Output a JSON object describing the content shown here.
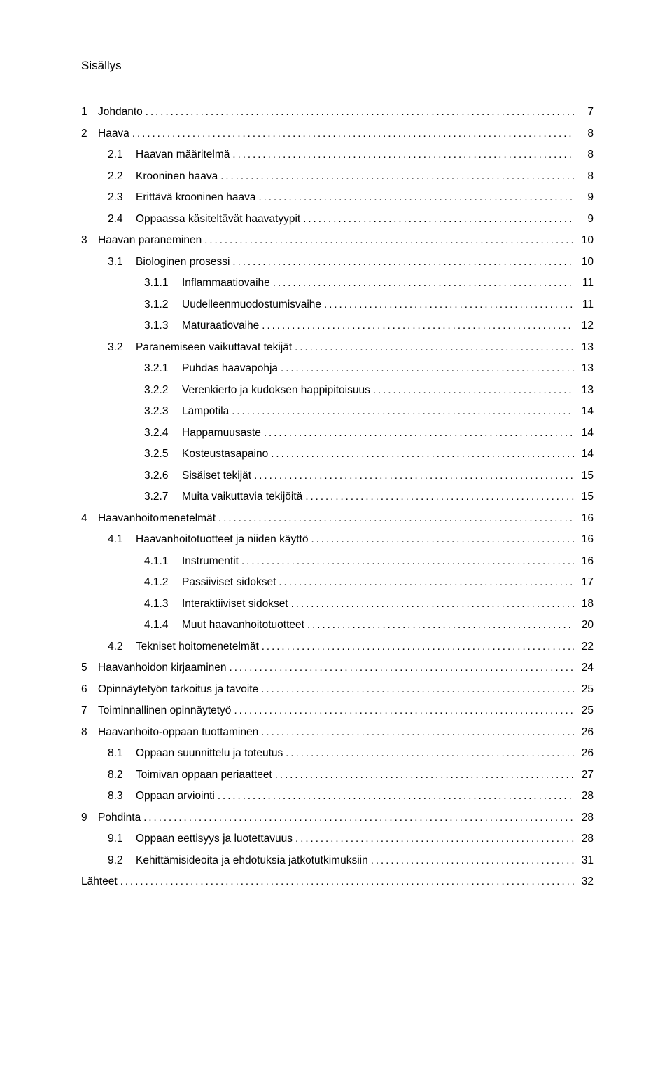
{
  "title": "Sisällys",
  "toc": [
    {
      "level": 0,
      "num": "1",
      "label": "Johdanto",
      "page": "7"
    },
    {
      "level": 0,
      "num": "2",
      "label": "Haava",
      "page": "8"
    },
    {
      "level": 1,
      "num": "2.1",
      "label": "Haavan määritelmä",
      "page": "8"
    },
    {
      "level": 1,
      "num": "2.2",
      "label": "Krooninen haava",
      "page": "8"
    },
    {
      "level": 1,
      "num": "2.3",
      "label": "Erittävä krooninen haava",
      "page": "9"
    },
    {
      "level": 1,
      "num": "2.4",
      "label": "Oppaassa käsiteltävät haavatyypit",
      "page": "9"
    },
    {
      "level": 0,
      "num": "3",
      "label": "Haavan paraneminen",
      "page": "10"
    },
    {
      "level": 1,
      "num": "3.1",
      "label": "Biologinen prosessi",
      "page": "10"
    },
    {
      "level": 2,
      "num": "3.1.1",
      "label": "Inflammaatiovaihe",
      "page": "11"
    },
    {
      "level": 2,
      "num": "3.1.2",
      "label": "Uudelleenmuodostumisvaihe",
      "page": "11"
    },
    {
      "level": 2,
      "num": "3.1.3",
      "label": "Maturaatiovaihe",
      "page": "12"
    },
    {
      "level": 1,
      "num": "3.2",
      "label": "Paranemiseen vaikuttavat tekijät",
      "page": "13"
    },
    {
      "level": 2,
      "num": "3.2.1",
      "label": "Puhdas haavapohja",
      "page": "13"
    },
    {
      "level": 2,
      "num": "3.2.2",
      "label": "Verenkierto ja kudoksen happipitoisuus",
      "page": "13"
    },
    {
      "level": 2,
      "num": "3.2.3",
      "label": "Lämpötila",
      "page": "14"
    },
    {
      "level": 2,
      "num": "3.2.4",
      "label": "Happamuusaste",
      "page": "14"
    },
    {
      "level": 2,
      "num": "3.2.5",
      "label": "Kosteustasapaino",
      "page": "14"
    },
    {
      "level": 2,
      "num": "3.2.6",
      "label": "Sisäiset tekijät",
      "page": "15"
    },
    {
      "level": 2,
      "num": "3.2.7",
      "label": "Muita vaikuttavia tekijöitä",
      "page": "15"
    },
    {
      "level": 0,
      "num": "4",
      "label": "Haavanhoitomenetelmät",
      "page": "16"
    },
    {
      "level": 1,
      "num": "4.1",
      "label": "Haavanhoitotuotteet ja niiden käyttö",
      "page": "16"
    },
    {
      "level": 2,
      "num": "4.1.1",
      "label": "Instrumentit",
      "page": "16"
    },
    {
      "level": 2,
      "num": "4.1.2",
      "label": "Passiiviset sidokset",
      "page": "17"
    },
    {
      "level": 2,
      "num": "4.1.3",
      "label": "Interaktiiviset sidokset",
      "page": "18"
    },
    {
      "level": 2,
      "num": "4.1.4",
      "label": "Muut haavanhoitotuotteet",
      "page": "20"
    },
    {
      "level": 1,
      "num": "4.2",
      "label": "Tekniset hoitomenetelmät",
      "page": "22"
    },
    {
      "level": 0,
      "num": "5",
      "label": "Haavanhoidon kirjaaminen",
      "page": "24"
    },
    {
      "level": 0,
      "num": "6",
      "label": "Opinnäytetyön tarkoitus ja tavoite",
      "page": "25"
    },
    {
      "level": 0,
      "num": "7",
      "label": "Toiminnallinen opinnäytetyö",
      "page": "25"
    },
    {
      "level": 0,
      "num": "8",
      "label": "Haavanhoito-oppaan tuottaminen",
      "page": "26"
    },
    {
      "level": 1,
      "num": "8.1",
      "label": "Oppaan suunnittelu ja toteutus",
      "page": "26"
    },
    {
      "level": 1,
      "num": "8.2",
      "label": "Toimivan oppaan periaatteet",
      "page": "27"
    },
    {
      "level": 1,
      "num": "8.3",
      "label": "Oppaan arviointi",
      "page": "28"
    },
    {
      "level": 0,
      "num": "9",
      "label": "Pohdinta",
      "page": "28"
    },
    {
      "level": 1,
      "num": "9.1",
      "label": "Oppaan eettisyys ja luotettavuus",
      "page": "28"
    },
    {
      "level": 1,
      "num": "9.2",
      "label": "Kehittämisideoita ja ehdotuksia jatkotutkimuksiin",
      "page": "31"
    },
    {
      "level": 0,
      "num": "",
      "label": "Lähteet",
      "page": "32"
    }
  ]
}
